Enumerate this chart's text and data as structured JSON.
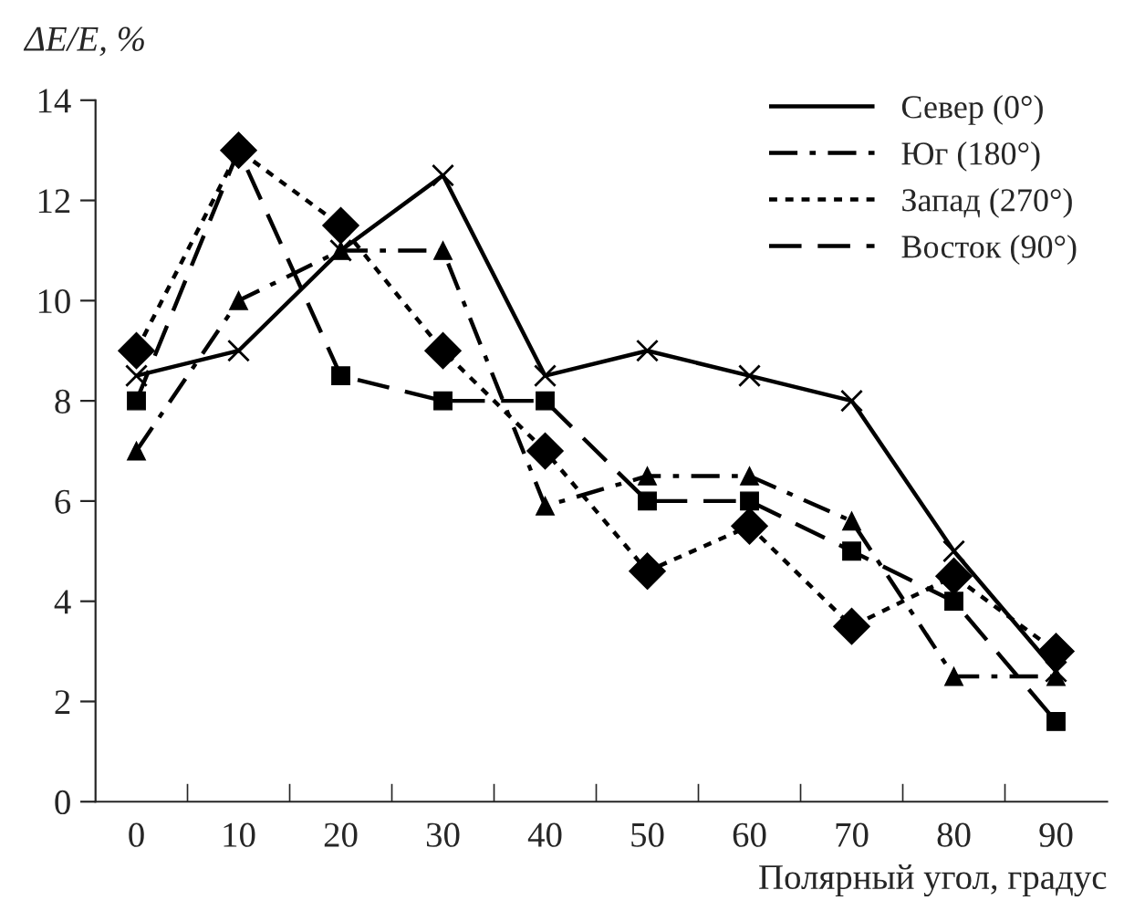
{
  "chart_data": {
    "type": "line",
    "xlabel": "Полярный угол, градус",
    "ylabel": "ΔE/E, %",
    "categories": [
      "0",
      "10",
      "20",
      "30",
      "40",
      "50",
      "60",
      "70",
      "80",
      "90"
    ],
    "ylim": [
      0,
      14
    ],
    "yticks": [
      0,
      2,
      4,
      6,
      8,
      10,
      12,
      14
    ],
    "grid": false,
    "legend": "top right",
    "series": [
      {
        "name": "Север (0°)",
        "color": "#000000",
        "marker": "cross",
        "line_style": "solid",
        "values": [
          8.5,
          9,
          11,
          12.5,
          8.5,
          9,
          8.5,
          8,
          5,
          2.6
        ]
      },
      {
        "name": "Юг (180°)",
        "color": "#000000",
        "marker": "triangle",
        "line_style": "dashdot",
        "values": [
          7,
          10,
          11,
          11,
          5.9,
          6.5,
          6.5,
          5.6,
          2.5,
          2.5
        ]
      },
      {
        "name": "Запад (270°)",
        "color": "#000000",
        "marker": "diamond",
        "line_style": "dotted",
        "values": [
          9,
          13,
          11.5,
          9,
          7,
          4.6,
          5.5,
          3.5,
          4.5,
          3
        ]
      },
      {
        "name": "Восток (90°)",
        "color": "#000000",
        "marker": "square",
        "line_style": "dashed",
        "values": [
          8,
          13,
          8.5,
          8,
          8,
          6,
          6,
          5,
          4,
          1.6
        ]
      }
    ]
  }
}
